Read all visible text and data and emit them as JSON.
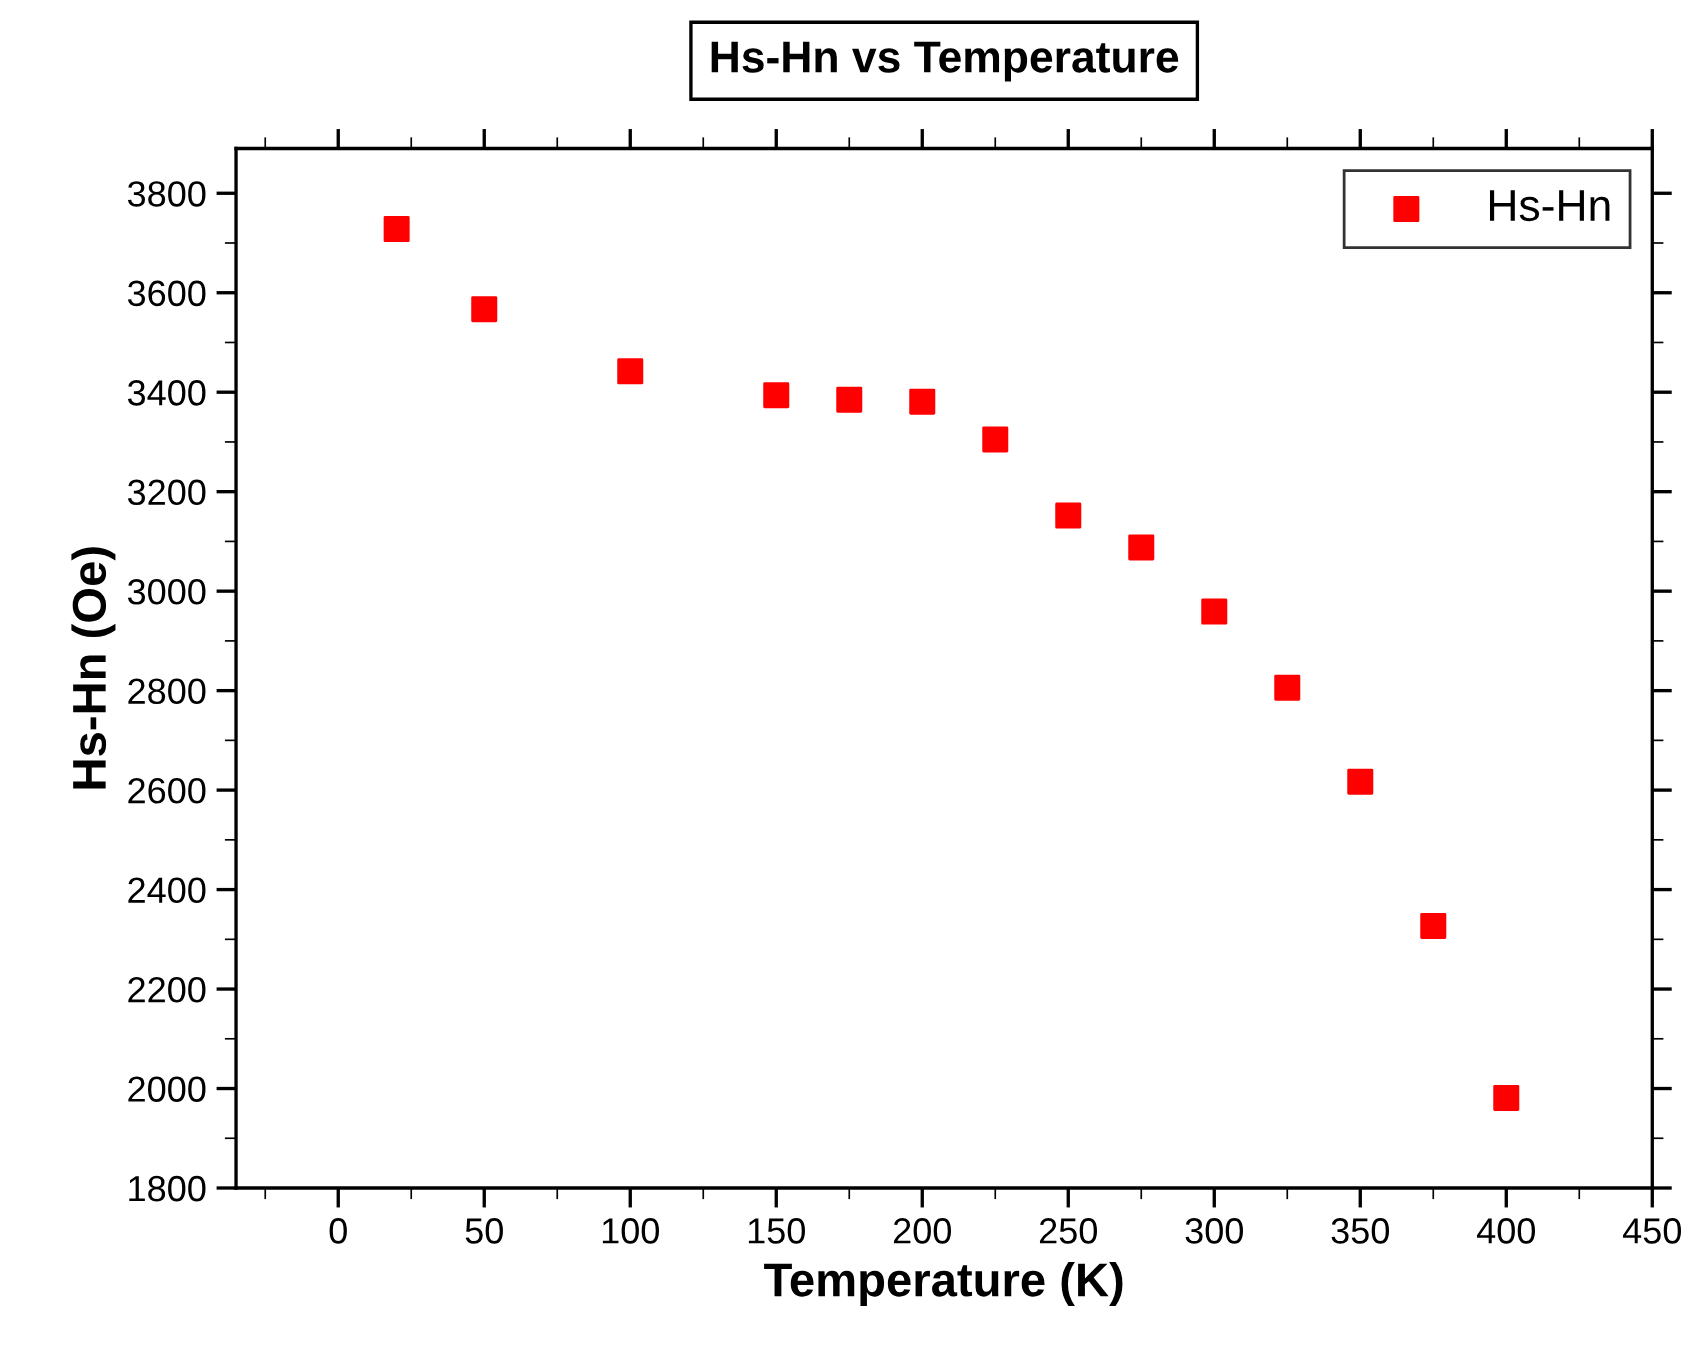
{
  "chart_data": {
    "type": "scatter",
    "title": "Hs-Hn vs Temperature",
    "xlabel": "Temperature (K)",
    "ylabel": "Hs-Hn (Oe)",
    "x": [
      20,
      50,
      100,
      150,
      175,
      200,
      225,
      250,
      275,
      300,
      325,
      350,
      375,
      400
    ],
    "series": [
      {
        "name": "Hs-Hn",
        "color": "#ff0000",
        "values": [
          3728,
          3567,
          3442,
          3394,
          3385,
          3381,
          3305,
          3152,
          3088,
          2959,
          2806,
          2617,
          2327,
          1981
        ]
      }
    ],
    "xlim": [
      -35,
      450
    ],
    "xticks": [
      0,
      50,
      100,
      150,
      200,
      250,
      300,
      350,
      400,
      450
    ],
    "ylim": [
      1800,
      3890
    ],
    "yticks": [
      1800,
      2000,
      2200,
      2400,
      2600,
      2800,
      3000,
      3200,
      3400,
      3600,
      3800
    ],
    "marker": "square",
    "legend": "top right",
    "grid": false
  }
}
